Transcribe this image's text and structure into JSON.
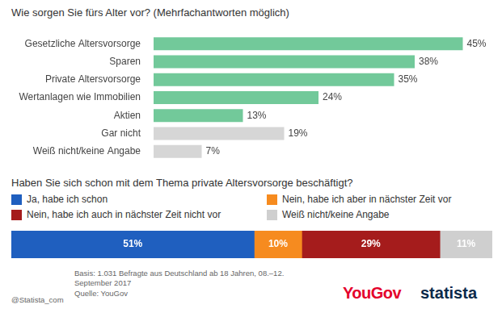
{
  "chart_data": [
    {
      "type": "bar",
      "orientation": "horizontal",
      "title": "Wie sorgen Sie fürs Alter vor? (Mehrfachantworten möglich)",
      "categories": [
        "Gesetzliche Altersvorsorge",
        "Sparen",
        "Private Altersvorsorge",
        "Wertanlagen wie Immobilien",
        "Aktien",
        "Gar nicht",
        "Weiß nicht/keine Angabe"
      ],
      "values": [
        45,
        38,
        35,
        24,
        13,
        19,
        7
      ],
      "value_labels": [
        "45%",
        "38%",
        "35%",
        "24%",
        "13%",
        "19%",
        "7%"
      ],
      "colors": [
        "#72c99a",
        "#72c99a",
        "#72c99a",
        "#72c99a",
        "#72c99a",
        "#d6d6d6",
        "#d6d6d6"
      ],
      "xlim": [
        0,
        50
      ],
      "grid": false,
      "tick_labels": "y",
      "data_labels": true
    },
    {
      "type": "bar",
      "orientation": "horizontal",
      "stacked": true,
      "title": "Haben Sie sich schon mit dem Thema private Altersvorsorge beschäftigt?",
      "categories": [
        null
      ],
      "series": [
        {
          "name": "Ja, habe ich schon",
          "color": "#1f5fbf",
          "values": [
            51
          ],
          "value_labels": [
            "51%"
          ]
        },
        {
          "name": "Nein, habe ich aber in nächster Zeit vor",
          "color": "#f68b1f",
          "values": [
            10
          ],
          "value_labels": [
            "10%"
          ]
        },
        {
          "name": "Nein, habe ich auch in nächster Zeit nicht vor",
          "color": "#a51c1c",
          "values": [
            29
          ],
          "value_labels": [
            "29%"
          ]
        },
        {
          "name": "Weiß nicht/keine Angabe",
          "color": "#cfcfcf",
          "values": [
            11
          ],
          "value_labels": [
            "11%"
          ]
        }
      ],
      "xlim": [
        0,
        101
      ],
      "grid": false,
      "tick_labels": false,
      "data_labels": true,
      "legend": "top"
    }
  ],
  "footer": {
    "basis": "Basis: 1.031 Befragte aus Deutschland ab 18 Jahren, 08.–12. September 2017",
    "source": "Quelle: YouGov",
    "handle": "@Statista_com",
    "logos": [
      "YouGov",
      "statista"
    ]
  }
}
